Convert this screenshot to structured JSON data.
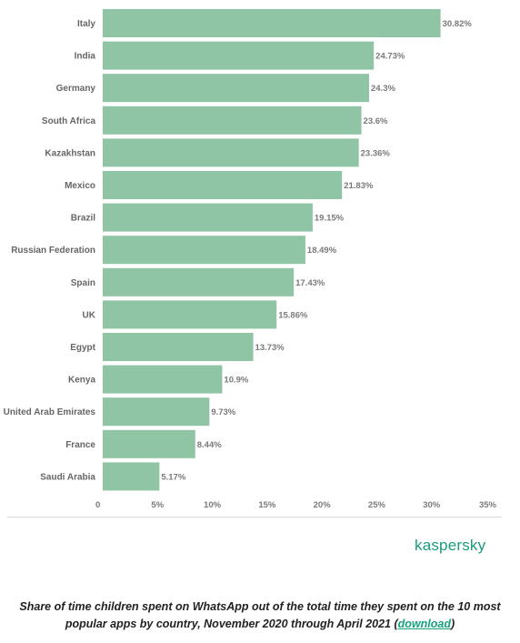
{
  "chart_data": {
    "type": "bar",
    "orientation": "horizontal",
    "categories": [
      "Italy",
      "India",
      "Germany",
      "South Africa",
      "Kazakhstan",
      "Mexico",
      "Brazil",
      "Russian Federation",
      "Spain",
      "UK",
      "Egypt",
      "Kenya",
      "United Arab Emirates",
      "France",
      "Saudi Arabia"
    ],
    "values": [
      30.82,
      24.73,
      24.3,
      23.6,
      23.36,
      21.83,
      19.15,
      18.49,
      17.43,
      15.86,
      13.73,
      10.9,
      9.73,
      8.44,
      5.17
    ],
    "value_labels": [
      "30.82%",
      "24.73%",
      "24.3%",
      "23.6%",
      "23.36%",
      "21.83%",
      "19.15%",
      "18.49%",
      "17.43%",
      "15.86%",
      "13.73%",
      "10.9%",
      "9.73%",
      "8.44%",
      "5.17%"
    ],
    "xlim": [
      0,
      35
    ],
    "xticks": [
      "0",
      "5%",
      "10%",
      "15%",
      "20%",
      "25%",
      "30%",
      "35%"
    ],
    "grid": false,
    "bar_color": "#8fc4a5"
  },
  "logo": {
    "text": "kaspersky",
    "color": "#1a9a7c"
  },
  "caption": {
    "text": "Share of time children spent on WhatsApp out of the total time they spent on the 10 most popular apps by country, November 2020 through April 2021 (",
    "link_text": "download",
    "suffix": ")"
  }
}
